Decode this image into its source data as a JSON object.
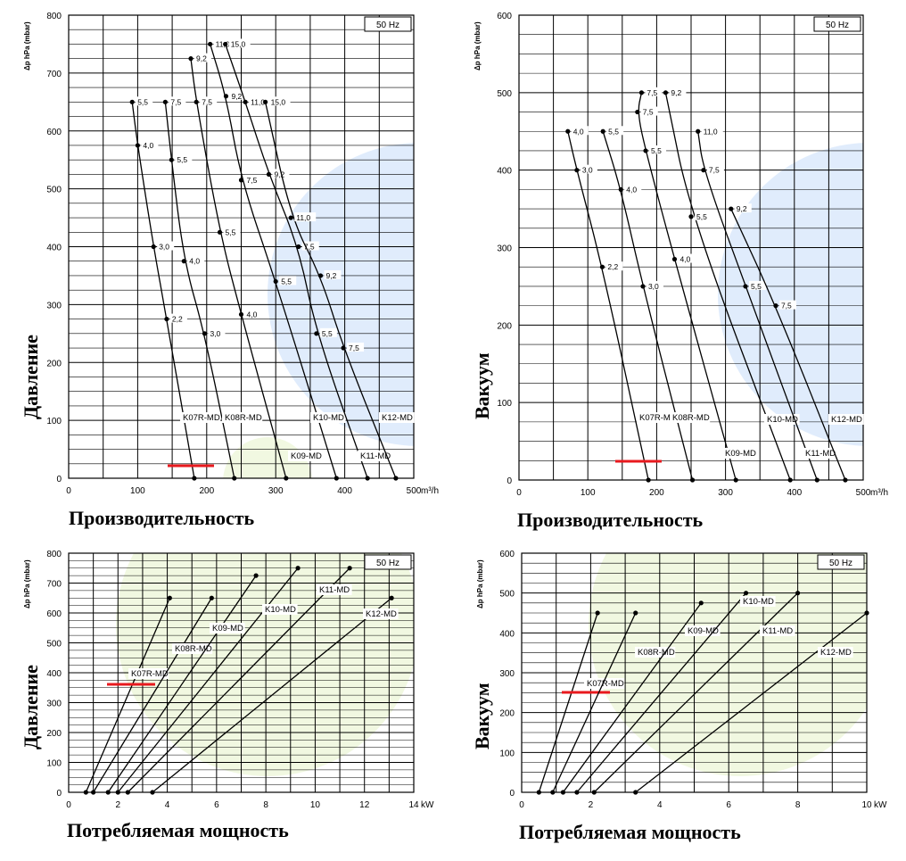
{
  "chart_data": [
    {
      "id": "pressure-flow",
      "type": "line",
      "frequency_label": "50 Hz",
      "ylabel": "Δp hPa (mbar)",
      "xunit": "m³/h",
      "side_label": "Давление",
      "bottom_label": "Производительность",
      "xlim": [
        0,
        500
      ],
      "ylim": [
        0,
        800
      ],
      "xticks": [
        0,
        100,
        200,
        300,
        400,
        500
      ],
      "yticks": [
        0,
        100,
        200,
        300,
        400,
        500,
        600,
        700,
        800
      ],
      "highlight_color": "#e8191e",
      "series": [
        {
          "name": "K07R-MD",
          "highlight": true,
          "points": [
            [
              92,
              650,
              "5,5"
            ],
            [
              100,
              575,
              "4,0"
            ],
            [
              123,
              400,
              "3,0"
            ],
            [
              142,
              275,
              "2,2"
            ],
            [
              182,
              0,
              ""
            ]
          ]
        },
        {
          "name": "K08R-MD",
          "points": [
            [
              140,
              650,
              "7,5"
            ],
            [
              149,
              550,
              "5,5"
            ],
            [
              167,
              375,
              "4,0"
            ],
            [
              197,
              250,
              "3,0"
            ],
            [
              240,
              0,
              ""
            ]
          ]
        },
        {
          "name": "K09-MD",
          "points": [
            [
              177,
              725,
              "9,2"
            ],
            [
              185,
              650,
              "7,5"
            ],
            [
              219,
              425,
              "5,5"
            ],
            [
              250,
              283,
              "4,0"
            ],
            [
              315,
              0,
              ""
            ]
          ]
        },
        {
          "name": "K10-MD",
          "points": [
            [
              205,
              750,
              "11,0"
            ],
            [
              228,
              660,
              "9,2"
            ],
            [
              250,
              515,
              "7,5"
            ],
            [
              300,
              340,
              "5,5"
            ],
            [
              388,
              0,
              ""
            ]
          ]
        },
        {
          "name": "K11-MD",
          "points": [
            [
              227,
              750,
              "15,0"
            ],
            [
              256,
              650,
              "11,0"
            ],
            [
              290,
              525,
              "9,2"
            ],
            [
              333,
              400,
              "7,5"
            ],
            [
              359,
              250,
              "5,5"
            ],
            [
              433,
              0,
              ""
            ]
          ]
        },
        {
          "name": "K12-MD",
          "points": [
            [
              285,
              650,
              "15,0"
            ],
            [
              322,
              450,
              "11,0"
            ],
            [
              365,
              350,
              "9,2"
            ],
            [
              398,
              225,
              "7,5"
            ],
            [
              474,
              0,
              ""
            ]
          ]
        }
      ]
    },
    {
      "id": "vacuum-flow",
      "type": "line",
      "frequency_label": "50 Hz",
      "ylabel": "Δp hPa (mbar)",
      "xunit": "m³/h",
      "side_label": "Вакуум",
      "bottom_label": "Производительность",
      "xlim": [
        0,
        500
      ],
      "ylim": [
        0,
        600
      ],
      "xticks": [
        0,
        100,
        200,
        300,
        400,
        500
      ],
      "yticks": [
        0,
        100,
        200,
        300,
        400,
        500,
        600
      ],
      "highlight_color": "#e8191e",
      "series": [
        {
          "name": "K07R-MD",
          "highlight": true,
          "points": [
            [
              71,
              450,
              "4,0"
            ],
            [
              84,
              400,
              "3,0"
            ],
            [
              121,
              275,
              "2,2"
            ],
            [
              188,
              0,
              ""
            ]
          ]
        },
        {
          "name": "K08R-MD",
          "points": [
            [
              122,
              450,
              "5,5"
            ],
            [
              148,
              375,
              "4,0"
            ],
            [
              180,
              250,
              "3,0"
            ],
            [
              252,
              0,
              ""
            ]
          ]
        },
        {
          "name": "K09-MD",
          "points": [
            [
              178,
              500,
              "7,5"
            ],
            [
              172,
              475,
              "7,5"
            ],
            [
              184,
              425,
              "5,5"
            ],
            [
              226,
              285,
              "4,0"
            ],
            [
              315,
              0,
              ""
            ]
          ]
        },
        {
          "name": "K10-MD",
          "points": [
            [
              213,
              500,
              "9,2"
            ],
            [
              250,
              340,
              "5,5"
            ],
            [
              394,
              0,
              ""
            ]
          ]
        },
        {
          "name": "K11-MD",
          "points": [
            [
              260,
              450,
              "11,0"
            ],
            [
              268,
              400,
              "7,5"
            ],
            [
              329,
              250,
              "5,5"
            ],
            [
              433,
              0,
              ""
            ]
          ]
        },
        {
          "name": "K12-MD",
          "points": [
            [
              308,
              350,
              "9,2"
            ],
            [
              373,
              225,
              "7,5"
            ],
            [
              474,
              0,
              ""
            ]
          ]
        }
      ]
    },
    {
      "id": "pressure-power",
      "type": "line",
      "frequency_label": "50 Hz",
      "ylabel": "Δp hPa (mbar)",
      "xunit": "kW",
      "side_label": "Давление",
      "bottom_label": "Потребляемая мощность",
      "xlim": [
        0,
        14
      ],
      "ylim": [
        0,
        800
      ],
      "xticks": [
        0,
        2,
        4,
        6,
        8,
        10,
        12,
        14
      ],
      "yticks": [
        0,
        100,
        200,
        300,
        400,
        500,
        600,
        700,
        800
      ],
      "highlight_color": "#e8191e",
      "series": [
        {
          "name": "K07R-MD",
          "highlight": true,
          "points": [
            [
              0.7,
              0
            ],
            [
              4.1,
              650
            ]
          ]
        },
        {
          "name": "K08R-MD",
          "points": [
            [
              1.0,
              0
            ],
            [
              5.8,
              650
            ]
          ]
        },
        {
          "name": "K09-MD",
          "points": [
            [
              1.6,
              0
            ],
            [
              7.6,
              725
            ]
          ]
        },
        {
          "name": "K10-MD",
          "points": [
            [
              2.0,
              0
            ],
            [
              9.3,
              750
            ]
          ]
        },
        {
          "name": "K11-MD",
          "points": [
            [
              2.4,
              0
            ],
            [
              11.4,
              750
            ]
          ]
        },
        {
          "name": "K12-MD",
          "points": [
            [
              3.4,
              0
            ],
            [
              13.1,
              650
            ]
          ]
        }
      ]
    },
    {
      "id": "vacuum-power",
      "type": "line",
      "frequency_label": "50 Hz",
      "ylabel": "Δp hPa (mbar)",
      "xunit": "kW",
      "side_label": "Вакуум",
      "bottom_label": "Потребляемая мощность",
      "xlim": [
        0,
        10
      ],
      "ylim": [
        0,
        600
      ],
      "xticks": [
        0,
        2,
        4,
        6,
        8,
        10
      ],
      "yticks": [
        0,
        100,
        200,
        300,
        400,
        500,
        600
      ],
      "highlight_color": "#e8191e",
      "series": [
        {
          "name": "K07R-MD",
          "highlight": true,
          "points": [
            [
              0.5,
              0
            ],
            [
              2.2,
              450
            ]
          ]
        },
        {
          "name": "K08R-MD",
          "points": [
            [
              0.9,
              0
            ],
            [
              3.3,
              450
            ]
          ]
        },
        {
          "name": "K09-MD",
          "points": [
            [
              1.2,
              0
            ],
            [
              5.2,
              475
            ]
          ]
        },
        {
          "name": "K10-MD",
          "points": [
            [
              1.6,
              0
            ],
            [
              6.5,
              500
            ]
          ]
        },
        {
          "name": "K11-MD",
          "points": [
            [
              2.1,
              0
            ],
            [
              8.0,
              500
            ]
          ]
        },
        {
          "name": "K12-MD",
          "points": [
            [
              3.3,
              0
            ],
            [
              10.0,
              450
            ]
          ]
        }
      ]
    }
  ]
}
